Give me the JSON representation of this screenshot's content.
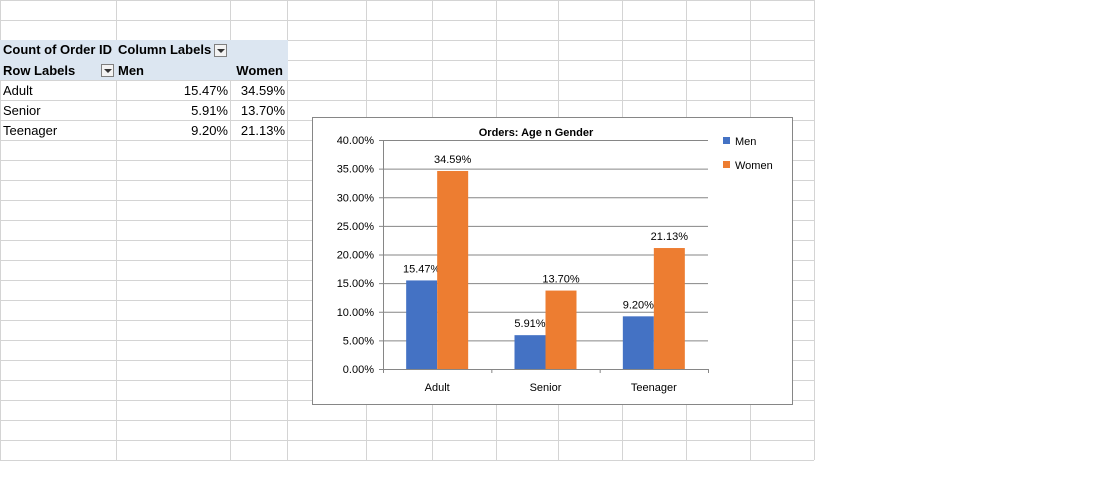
{
  "pivot": {
    "values_header": "Count of Order ID",
    "column_labels": "Column Labels",
    "row_labels": "Row Labels",
    "columns": [
      "Men",
      "Women"
    ],
    "rows": [
      {
        "label": "Adult",
        "men": "15.47%",
        "women": "34.59%"
      },
      {
        "label": "Senior",
        "men": "5.91%",
        "women": "13.70%"
      },
      {
        "label": "Teenager",
        "men": "9.20%",
        "women": "21.13%"
      }
    ]
  },
  "chart_data": {
    "type": "bar",
    "title": "Orders: Age n Gender",
    "categories": [
      "Adult",
      "Senior",
      "Teenager"
    ],
    "series": [
      {
        "name": "Men",
        "color": "#4472c4",
        "values": [
          15.47,
          5.91,
          9.2
        ],
        "labels": [
          "15.47%",
          "5.91%",
          "9.20%"
        ]
      },
      {
        "name": "Women",
        "color": "#ed7d31",
        "values": [
          34.59,
          13.7,
          21.13
        ],
        "labels": [
          "34.59%",
          "13.70%",
          "21.13%"
        ]
      }
    ],
    "ylim": [
      0,
      40
    ],
    "yticks": [
      "0.00%",
      "5.00%",
      "10.00%",
      "15.00%",
      "20.00%",
      "25.00%",
      "30.00%",
      "35.00%",
      "40.00%"
    ],
    "legend_position": "right",
    "grid": true
  }
}
